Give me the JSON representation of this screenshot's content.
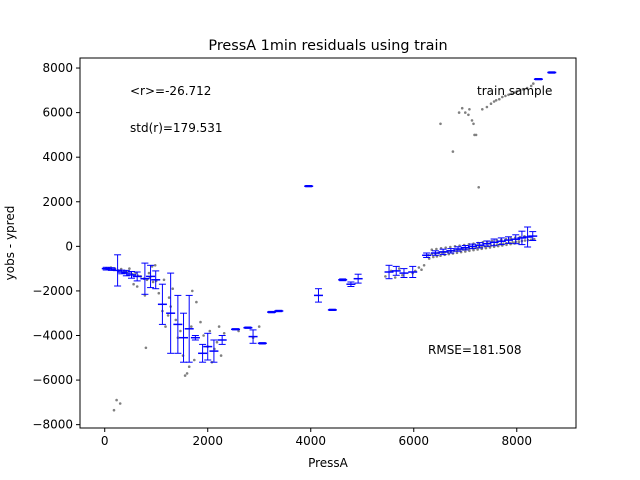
{
  "chart_data": {
    "type": "scatter",
    "title": "PressA 1min residuals using train",
    "xlabel": "PressA",
    "ylabel": "yobs - ypred",
    "xlim": [
      -480,
      9150
    ],
    "ylim": [
      -8150,
      8450
    ],
    "grid": false,
    "xticks": [
      0,
      2000,
      4000,
      6000,
      8000
    ],
    "yticks": [
      -8000,
      -6000,
      -4000,
      -2000,
      0,
      2000,
      4000,
      6000,
      8000
    ],
    "annotations": {
      "mean": "<r>=-26.712",
      "std": "std(r)=179.531",
      "sample": "train sample",
      "rmse": "RMSE=181.508"
    },
    "colors": {
      "points": "#808080",
      "bins": "#0000ff"
    },
    "series": [
      {
        "kind": "residual points",
        "points": [
          [
            30,
            -980
          ],
          [
            60,
            -1020
          ],
          [
            90,
            -1000
          ],
          [
            120,
            -950
          ],
          [
            150,
            -1050
          ],
          [
            200,
            -1000
          ],
          [
            260,
            -1080
          ],
          [
            320,
            -1020
          ],
          [
            380,
            -1100
          ],
          [
            430,
            -1150
          ],
          [
            480,
            -1000
          ],
          [
            540,
            -1250
          ],
          [
            600,
            -1200
          ],
          [
            650,
            -1320
          ],
          [
            700,
            -1350
          ],
          [
            760,
            -1450
          ],
          [
            820,
            -1500
          ],
          [
            880,
            -1400
          ],
          [
            940,
            -1600
          ],
          [
            1000,
            -1550
          ],
          [
            180,
            -7350
          ],
          [
            230,
            -6900
          ],
          [
            300,
            -7050
          ],
          [
            560,
            -1700
          ],
          [
            630,
            -1800
          ],
          [
            780,
            -2200
          ],
          [
            800,
            -4550
          ],
          [
            920,
            -900
          ],
          [
            980,
            -850
          ],
          [
            1050,
            -2100
          ],
          [
            1120,
            -2900
          ],
          [
            1180,
            -3600
          ],
          [
            1230,
            -3100
          ],
          [
            1280,
            -2700
          ],
          [
            1320,
            -1900
          ],
          [
            1380,
            -3300
          ],
          [
            1420,
            -4100
          ],
          [
            1470,
            -3800
          ],
          [
            1520,
            -4900
          ],
          [
            1560,
            -5800
          ],
          [
            1600,
            -5700
          ],
          [
            1640,
            -5400
          ],
          [
            1680,
            -3600
          ],
          [
            1700,
            -2000
          ],
          [
            1740,
            -5100
          ],
          [
            1780,
            -2500
          ],
          [
            1860,
            -3400
          ],
          [
            1920,
            -4000
          ],
          [
            2000,
            -4500
          ],
          [
            2040,
            -3800
          ],
          [
            2080,
            -5200
          ],
          [
            2130,
            -4600
          ],
          [
            2180,
            -4300
          ],
          [
            2220,
            -3600
          ],
          [
            2260,
            -4900
          ],
          [
            2320,
            -3900
          ],
          [
            2600,
            -3800
          ],
          [
            2880,
            -4100
          ],
          [
            3000,
            -3600
          ],
          [
            1150,
            -1500
          ],
          [
            1250,
            -2300
          ],
          [
            860,
            -1200
          ],
          [
            6280,
            -400
          ],
          [
            6350,
            -350
          ],
          [
            6420,
            -330
          ],
          [
            6480,
            -300
          ],
          [
            6540,
            -280
          ],
          [
            6600,
            -260
          ],
          [
            6660,
            -240
          ],
          [
            6720,
            -220
          ],
          [
            6780,
            -200
          ],
          [
            6840,
            -180
          ],
          [
            6900,
            -160
          ],
          [
            6960,
            -140
          ],
          [
            7020,
            -120
          ],
          [
            7080,
            -100
          ],
          [
            7140,
            -80
          ],
          [
            7200,
            -60
          ],
          [
            7260,
            -40
          ],
          [
            7320,
            -20
          ],
          [
            7380,
            0
          ],
          [
            7440,
            20
          ],
          [
            7500,
            40
          ],
          [
            7560,
            60
          ],
          [
            7620,
            80
          ],
          [
            7680,
            100
          ],
          [
            7740,
            120
          ],
          [
            7800,
            140
          ],
          [
            7860,
            160
          ],
          [
            7920,
            180
          ],
          [
            7980,
            200
          ],
          [
            8040,
            220
          ],
          [
            8100,
            240
          ],
          [
            8160,
            260
          ],
          [
            8220,
            280
          ],
          [
            8280,
            300
          ],
          [
            8340,
            320
          ],
          [
            6300,
            -550
          ],
          [
            6380,
            -480
          ],
          [
            6450,
            -450
          ],
          [
            6520,
            -420
          ],
          [
            6600,
            -380
          ],
          [
            6680,
            -350
          ],
          [
            6760,
            -320
          ],
          [
            6840,
            -290
          ],
          [
            6920,
            -260
          ],
          [
            7000,
            -230
          ],
          [
            7080,
            -200
          ],
          [
            7160,
            -170
          ],
          [
            7240,
            -140
          ],
          [
            7320,
            -110
          ],
          [
            7400,
            -80
          ],
          [
            7480,
            -50
          ],
          [
            7560,
            -20
          ],
          [
            7640,
            10
          ],
          [
            7720,
            40
          ],
          [
            7800,
            70
          ],
          [
            7880,
            100
          ],
          [
            7960,
            130
          ],
          [
            8040,
            160
          ],
          [
            6350,
            -150
          ],
          [
            6440,
            -120
          ],
          [
            6530,
            -90
          ],
          [
            6620,
            -60
          ],
          [
            6710,
            -30
          ],
          [
            6800,
            0
          ],
          [
            6890,
            30
          ],
          [
            6980,
            60
          ],
          [
            7070,
            90
          ],
          [
            7160,
            120
          ],
          [
            7250,
            150
          ],
          [
            7340,
            180
          ],
          [
            7430,
            210
          ],
          [
            7520,
            240
          ],
          [
            7610,
            270
          ],
          [
            7700,
            300
          ],
          [
            7790,
            330
          ],
          [
            7880,
            360
          ],
          [
            7970,
            390
          ],
          [
            8060,
            420
          ],
          [
            8150,
            450
          ],
          [
            5980,
            -1200
          ],
          [
            6030,
            -1100
          ],
          [
            6100,
            -950
          ],
          [
            6150,
            -1050
          ],
          [
            6200,
            -850
          ],
          [
            5780,
            -1300
          ],
          [
            5720,
            -1000
          ],
          [
            5640,
            -1400
          ],
          [
            5560,
            -1100
          ],
          [
            5450,
            -1350
          ],
          [
            6520,
            5500
          ],
          [
            6760,
            4250
          ],
          [
            6880,
            6000
          ],
          [
            6940,
            6200
          ],
          [
            7000,
            6000
          ],
          [
            7060,
            5900
          ],
          [
            7080,
            6150
          ],
          [
            7130,
            5650
          ],
          [
            7160,
            5500
          ],
          [
            7180,
            5000
          ],
          [
            7210,
            5000
          ],
          [
            7260,
            2650
          ],
          [
            7330,
            6150
          ],
          [
            7420,
            6250
          ],
          [
            7500,
            6400
          ],
          [
            7560,
            6500
          ],
          [
            7600,
            6550
          ],
          [
            7660,
            6600
          ],
          [
            7720,
            6700
          ],
          [
            7780,
            6750
          ],
          [
            7840,
            6800
          ],
          [
            7900,
            6850
          ],
          [
            7960,
            6900
          ],
          [
            8000,
            6950
          ],
          [
            8060,
            7000
          ],
          [
            8120,
            7050
          ],
          [
            8200,
            7100
          ],
          [
            8280,
            7200
          ],
          [
            8320,
            7300
          ]
        ]
      },
      {
        "kind": "binned mean with error",
        "bins": [
          [
            30,
            -1000,
            60
          ],
          [
            130,
            -1020,
            60
          ],
          [
            250,
            -1080,
            700
          ],
          [
            330,
            -1150,
            80
          ],
          [
            420,
            -1200,
            120
          ],
          [
            520,
            -1280,
            150
          ],
          [
            630,
            -1350,
            200
          ],
          [
            780,
            -1450,
            700
          ],
          [
            890,
            -1350,
            500
          ],
          [
            990,
            -1500,
            400
          ],
          [
            1120,
            -2600,
            900
          ],
          [
            1280,
            -3000,
            1800
          ],
          [
            1420,
            -3500,
            1300
          ],
          [
            1530,
            -4100,
            1100
          ],
          [
            1640,
            -3700,
            1500
          ],
          [
            1760,
            -4100,
            100
          ],
          [
            1900,
            -4800,
            400
          ],
          [
            2000,
            -4500,
            600
          ],
          [
            2120,
            -4700,
            500
          ],
          [
            2280,
            -4200,
            200
          ],
          [
            2540,
            -3720,
            30
          ],
          [
            2780,
            -3650,
            30
          ],
          [
            2880,
            -4050,
            300
          ],
          [
            3060,
            -4350,
            30
          ],
          [
            3240,
            -2950,
            30
          ],
          [
            3380,
            -2900,
            30
          ],
          [
            3960,
            2700,
            30
          ],
          [
            4150,
            -2200,
            300
          ],
          [
            4420,
            -2850,
            30
          ],
          [
            4620,
            -1500,
            40
          ],
          [
            4780,
            -1700,
            100
          ],
          [
            4920,
            -1450,
            200
          ],
          [
            5520,
            -1150,
            300
          ],
          [
            5660,
            -1100,
            200
          ],
          [
            5810,
            -1200,
            200
          ],
          [
            5980,
            -1150,
            250
          ],
          [
            6250,
            -400,
            100
          ],
          [
            6420,
            -300,
            100
          ],
          [
            6570,
            -250,
            120
          ],
          [
            6720,
            -200,
            100
          ],
          [
            6860,
            -120,
            100
          ],
          [
            7000,
            -60,
            100
          ],
          [
            7140,
            0,
            100
          ],
          [
            7280,
            50,
            120
          ],
          [
            7420,
            120,
            120
          ],
          [
            7560,
            180,
            150
          ],
          [
            7700,
            230,
            150
          ],
          [
            7840,
            280,
            150
          ],
          [
            7980,
            320,
            200
          ],
          [
            8100,
            380,
            300
          ],
          [
            8210,
            420,
            450
          ],
          [
            8310,
            460,
            200
          ],
          [
            8420,
            7500,
            30
          ],
          [
            8680,
            7800,
            30
          ]
        ]
      }
    ]
  }
}
